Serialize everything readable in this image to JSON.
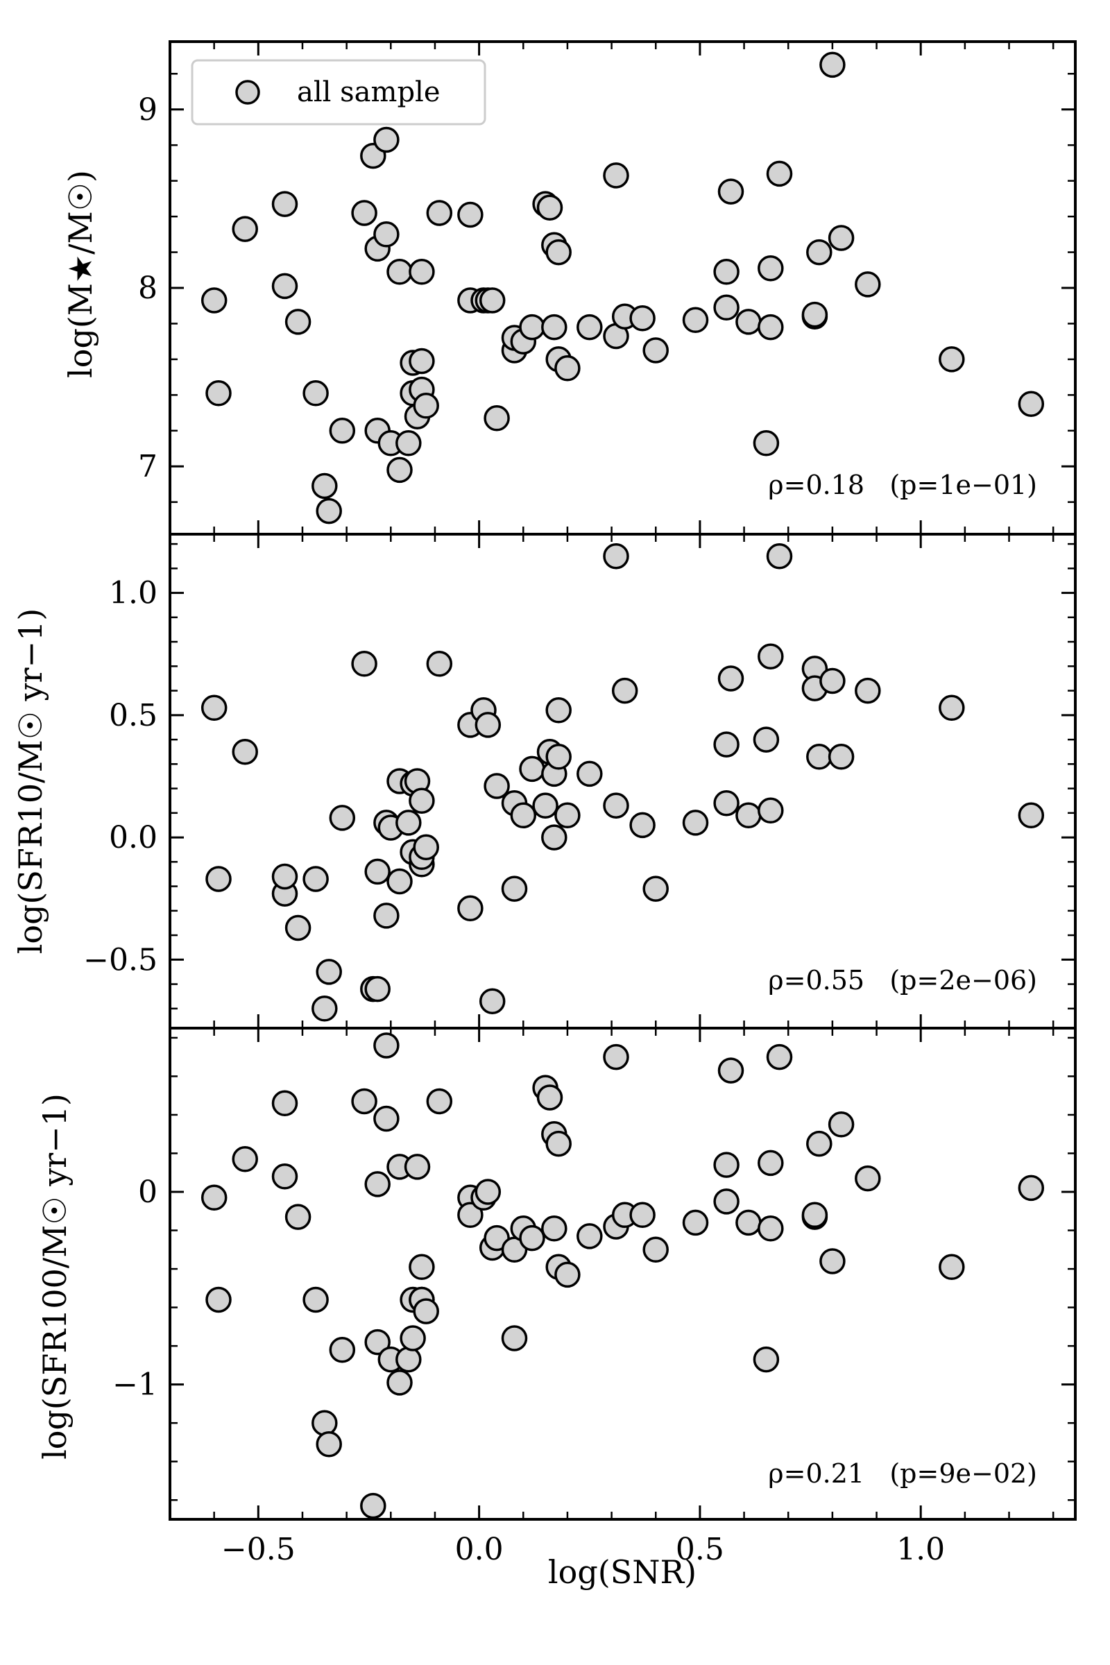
{
  "chart_data": {
    "type": "scatter",
    "xlabel": "log(SNR)",
    "xlim": [
      -0.7,
      1.35
    ],
    "xticks": [
      -0.5,
      0.0,
      0.5,
      1.0
    ],
    "xtick_labels": [
      "−0.5",
      "0.0",
      "0.5",
      "1.0"
    ],
    "legend": {
      "label": "all sample",
      "placement": "upper-left"
    },
    "marker": {
      "face": "#d3d3d3",
      "edge": "#000000"
    },
    "x": [
      -0.6,
      -0.59,
      -0.53,
      -0.44,
      -0.44,
      -0.41,
      -0.37,
      -0.35,
      -0.34,
      -0.31,
      -0.26,
      -0.24,
      -0.23,
      -0.23,
      -0.21,
      -0.21,
      -0.2,
      -0.18,
      -0.18,
      -0.16,
      -0.15,
      -0.15,
      -0.14,
      -0.13,
      -0.13,
      -0.13,
      -0.12,
      -0.09,
      -0.02,
      -0.02,
      0.01,
      0.02,
      0.03,
      0.04,
      0.08,
      0.08,
      0.1,
      0.12,
      0.15,
      0.16,
      0.17,
      0.17,
      0.18,
      0.18,
      0.2,
      0.25,
      0.31,
      0.31,
      0.33,
      0.37,
      0.4,
      0.49,
      0.56,
      0.56,
      0.57,
      0.61,
      0.65,
      0.66,
      0.66,
      0.68,
      0.76,
      0.76,
      0.77,
      0.8,
      0.82,
      0.88,
      1.07,
      1.25
    ],
    "panels": [
      {
        "ylabel": "log(M★/M☉)",
        "ylim": [
          6.62,
          9.38
        ],
        "yticks": [
          7,
          8,
          9
        ],
        "ytick_labels": [
          "7",
          "8",
          "9"
        ],
        "stat": "ρ=0.18   (p=1e−01)",
        "y": [
          7.93,
          7.41,
          8.33,
          8.47,
          8.01,
          7.81,
          7.41,
          6.89,
          6.75,
          7.2,
          8.42,
          8.74,
          7.2,
          8.22,
          8.83,
          8.3,
          7.13,
          8.09,
          6.98,
          7.13,
          7.41,
          7.58,
          7.28,
          8.09,
          7.59,
          7.43,
          7.34,
          8.42,
          7.93,
          8.41,
          7.93,
          7.93,
          7.93,
          7.27,
          7.65,
          7.72,
          7.7,
          7.78,
          8.47,
          8.45,
          8.24,
          7.78,
          7.6,
          8.2,
          7.55,
          7.78,
          7.73,
          8.63,
          7.84,
          7.83,
          7.65,
          7.82,
          7.89,
          8.09,
          8.54,
          7.81,
          7.13,
          7.78,
          8.11,
          8.64,
          7.84,
          7.85,
          8.2,
          9.25,
          8.28,
          8.02,
          7.6,
          7.35
        ]
      },
      {
        "ylabel": "log(SFR10/M☉ yr−1)",
        "ylim": [
          -0.78,
          1.24
        ],
        "yticks": [
          -0.5,
          0.0,
          0.5,
          1.0
        ],
        "ytick_labels": [
          "−0.5",
          "0.0",
          "0.5",
          "1.0"
        ],
        "stat": "ρ=0.55   (p=2e−06)",
        "y": [
          0.53,
          -0.17,
          0.35,
          -0.23,
          -0.16,
          -0.37,
          -0.17,
          -0.7,
          -0.55,
          0.08,
          0.71,
          -0.62,
          -0.62,
          -0.14,
          -0.32,
          0.06,
          0.04,
          0.23,
          -0.18,
          0.06,
          -0.06,
          0.22,
          0.23,
          -0.11,
          0.15,
          -0.08,
          -0.04,
          0.71,
          0.46,
          -0.29,
          0.52,
          0.46,
          -0.67,
          0.21,
          -0.21,
          0.14,
          0.09,
          0.28,
          0.13,
          0.35,
          0.0,
          0.26,
          0.52,
          0.33,
          0.09,
          0.26,
          0.13,
          1.15,
          0.6,
          0.05,
          -0.21,
          0.06,
          0.14,
          0.38,
          0.65,
          0.09,
          0.4,
          0.11,
          0.74,
          1.15,
          0.69,
          0.61,
          0.33,
          0.64,
          0.33,
          0.6,
          0.53,
          0.09
        ]
      },
      {
        "ylabel": "log(SFR100/M☉ yr−1)",
        "ylim": [
          -1.7,
          0.85
        ],
        "yticks": [
          -1,
          0
        ],
        "ytick_labels": [
          "−1",
          "0"
        ],
        "stat": "ρ=0.21   (p=9e−02)",
        "y": [
          -0.03,
          -0.56,
          0.17,
          0.46,
          0.08,
          -0.13,
          -0.56,
          -1.2,
          -1.31,
          -0.82,
          0.47,
          -1.63,
          -0.78,
          0.04,
          0.76,
          0.38,
          -0.87,
          0.13,
          -0.99,
          -0.87,
          -0.56,
          -0.76,
          0.13,
          -0.39,
          -0.56,
          -0.56,
          -0.62,
          0.47,
          -0.03,
          -0.12,
          -0.03,
          0.0,
          -0.29,
          -0.24,
          -0.3,
          -0.76,
          -0.19,
          -0.24,
          0.54,
          0.49,
          0.3,
          -0.19,
          -0.39,
          0.25,
          -0.43,
          -0.23,
          -0.18,
          0.7,
          -0.12,
          -0.12,
          -0.3,
          -0.16,
          -0.05,
          0.14,
          0.63,
          -0.16,
          -0.87,
          -0.19,
          0.15,
          0.7,
          -0.13,
          -0.12,
          0.25,
          -0.36,
          0.35,
          0.07,
          -0.39,
          0.02
        ]
      }
    ]
  }
}
